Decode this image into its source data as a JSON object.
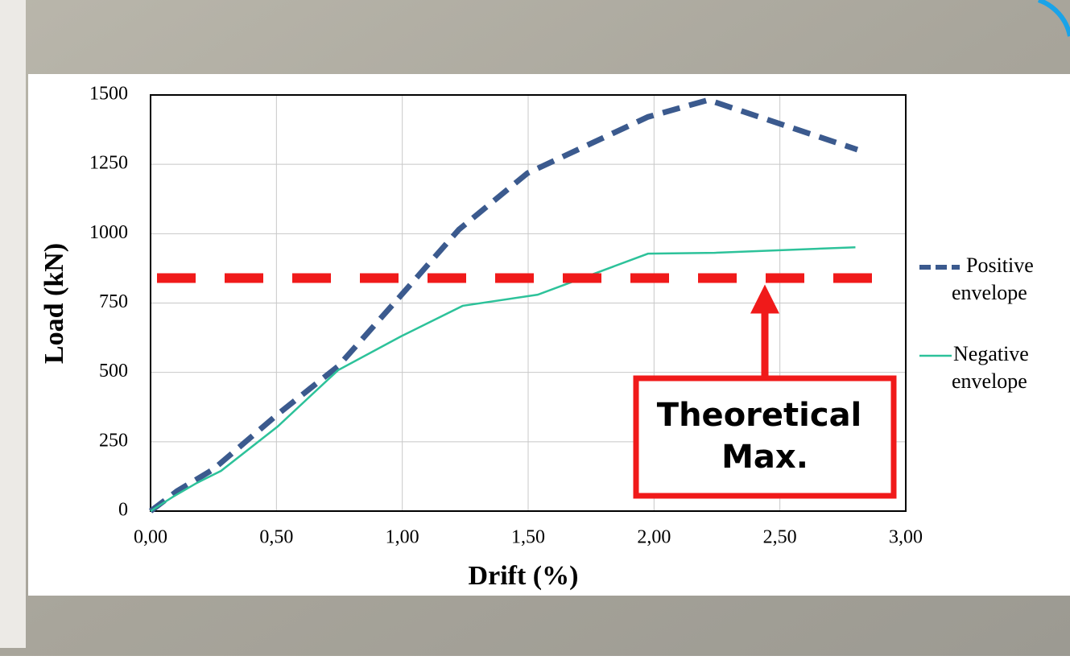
{
  "chart_data": {
    "type": "line",
    "xlabel": "Drift (%)",
    "ylabel": "Load (kN)",
    "xlim": [
      0,
      3
    ],
    "ylim": [
      0,
      1500
    ],
    "xticks": [
      {
        "value": 0,
        "label": "0,00"
      },
      {
        "value": 0.5,
        "label": "0,50"
      },
      {
        "value": 1,
        "label": "1,00"
      },
      {
        "value": 1.5,
        "label": "1,50"
      },
      {
        "value": 2,
        "label": "2,00"
      },
      {
        "value": 2.5,
        "label": "2,50"
      },
      {
        "value": 3,
        "label": "3,00"
      }
    ],
    "yticks": [
      0,
      250,
      500,
      750,
      1000,
      1250,
      1500
    ],
    "grid": true,
    "series": [
      {
        "name": "Positive envelope",
        "color": "#3b5a8e",
        "dashed": true,
        "x": [
          0,
          0.105,
          0.25,
          0.505,
          0.745,
          1.0,
          1.225,
          1.497,
          1.976,
          2.216,
          2.808
        ],
        "values": [
          0,
          72,
          151,
          349,
          522,
          783,
          1015,
          1218,
          1421,
          1482,
          1303
        ]
      },
      {
        "name": "Negative envelope",
        "color": "#2dc29a",
        "dashed": false,
        "x": [
          0,
          0.09,
          0.185,
          0.28,
          0.505,
          0.745,
          0.995,
          1.24,
          1.538,
          1.976,
          2.24,
          2.8
        ],
        "values": [
          0,
          52,
          102,
          145,
          305,
          508,
          630,
          740,
          780,
          928,
          931,
          951
        ]
      }
    ],
    "reference_line": {
      "value": 840,
      "label": "Theoretical Max.",
      "color": "#f01a1a"
    }
  }
}
